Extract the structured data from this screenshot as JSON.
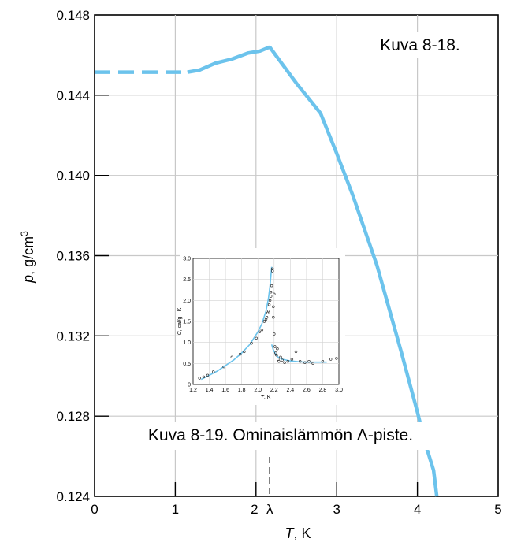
{
  "chart_data": [
    {
      "type": "line",
      "xlabel_var": "T",
      "xlabel_unit": ", K",
      "ylabel_var": "p",
      "ylabel_unit": ", g/cm",
      "ylabel_sup": "3",
      "xlim": [
        0,
        5
      ],
      "ylim": [
        0.124,
        0.148
      ],
      "xticks": [
        "0",
        "1",
        "2",
        "3",
        "4",
        "5"
      ],
      "yticks": [
        "0.124",
        "0.128",
        "0.132",
        "0.136",
        "0.140",
        "0.144",
        "0.148"
      ],
      "lambda_label": "λ",
      "lambda_x": 2.17,
      "grid": true,
      "line_color": "#6cc3ec",
      "series": [
        {
          "style": "dashed",
          "x": [
            0.0,
            1.15
          ],
          "y": [
            0.14515,
            0.14515
          ]
        },
        {
          "style": "solid",
          "x": [
            1.15,
            1.3,
            1.5,
            1.7,
            1.9,
            2.05,
            2.17
          ],
          "y": [
            0.14515,
            0.14525,
            0.1456,
            0.1458,
            0.1461,
            0.1462,
            0.1464
          ]
        },
        {
          "style": "solid",
          "x": [
            2.17,
            2.5,
            2.8,
            3.0,
            3.2,
            3.5,
            3.8,
            4.0,
            4.1,
            4.2,
            4.24
          ],
          "y": [
            0.1464,
            0.1446,
            0.1431,
            0.1411,
            0.139,
            0.1355,
            0.1312,
            0.1282,
            0.1266,
            0.1253,
            0.124
          ]
        }
      ],
      "annotations": [
        "Kuva 8-18.",
        "Kuva 8-19. Ominaislämmön Λ-piste."
      ]
    },
    {
      "type": "scatter",
      "xlabel_var": "T",
      "xlabel_unit": ", K",
      "ylabel_var": "C",
      "ylabel_unit": ", cal/g · K",
      "xlim": [
        1.2,
        3.0
      ],
      "ylim": [
        0,
        3.0
      ],
      "xticks": [
        "1.2",
        "1.4",
        "1.6",
        "1.8",
        "2.0",
        "2.2",
        "2.4",
        "2.6",
        "2.8",
        "3.0"
      ],
      "yticks": [
        "0",
        "0.5",
        "1.0",
        "1.5",
        "2.0",
        "2.5",
        "3.0"
      ],
      "curve_color": "#6cc3ec",
      "curve_left": {
        "x": [
          1.3,
          1.4,
          1.5,
          1.6,
          1.7,
          1.8,
          1.9,
          2.0,
          2.05,
          2.1,
          2.13,
          2.15,
          2.17
        ],
        "y": [
          0.12,
          0.22,
          0.32,
          0.45,
          0.58,
          0.75,
          0.95,
          1.25,
          1.45,
          1.75,
          2.05,
          2.35,
          2.8
        ]
      },
      "curve_right": {
        "x": [
          2.17,
          2.19,
          2.22,
          2.25,
          2.3,
          2.4,
          2.5,
          2.6,
          2.7,
          2.85
        ],
        "y": [
          0.95,
          0.82,
          0.72,
          0.65,
          0.6,
          0.56,
          0.54,
          0.53,
          0.53,
          0.53
        ]
      },
      "points": {
        "x": [
          1.28,
          1.33,
          1.38,
          1.45,
          1.58,
          1.68,
          1.78,
          1.83,
          1.92,
          1.98,
          2.02,
          2.05,
          2.08,
          2.1,
          2.11,
          2.12,
          2.13,
          2.14,
          2.15,
          2.16,
          2.16,
          2.17,
          2.18,
          2.18,
          2.19,
          2.19,
          2.2,
          2.2,
          2.21,
          2.22,
          2.23,
          2.24,
          2.25,
          2.26,
          2.28,
          2.3,
          2.33,
          2.37,
          2.42,
          2.47,
          2.52,
          2.58,
          2.63,
          2.68,
          2.8,
          2.9,
          2.97
        ],
        "y": [
          0.15,
          0.18,
          0.22,
          0.3,
          0.42,
          0.65,
          0.72,
          0.78,
          0.98,
          1.1,
          1.25,
          1.3,
          1.5,
          1.55,
          1.6,
          1.7,
          1.75,
          1.9,
          2.0,
          2.1,
          2.2,
          2.35,
          2.7,
          2.75,
          1.6,
          1.85,
          2.15,
          1.2,
          0.9,
          0.75,
          0.7,
          0.85,
          0.6,
          0.55,
          0.65,
          0.58,
          0.52,
          0.55,
          0.6,
          0.78,
          0.55,
          0.52,
          0.55,
          0.5,
          0.55,
          0.6,
          0.62
        ]
      }
    }
  ]
}
